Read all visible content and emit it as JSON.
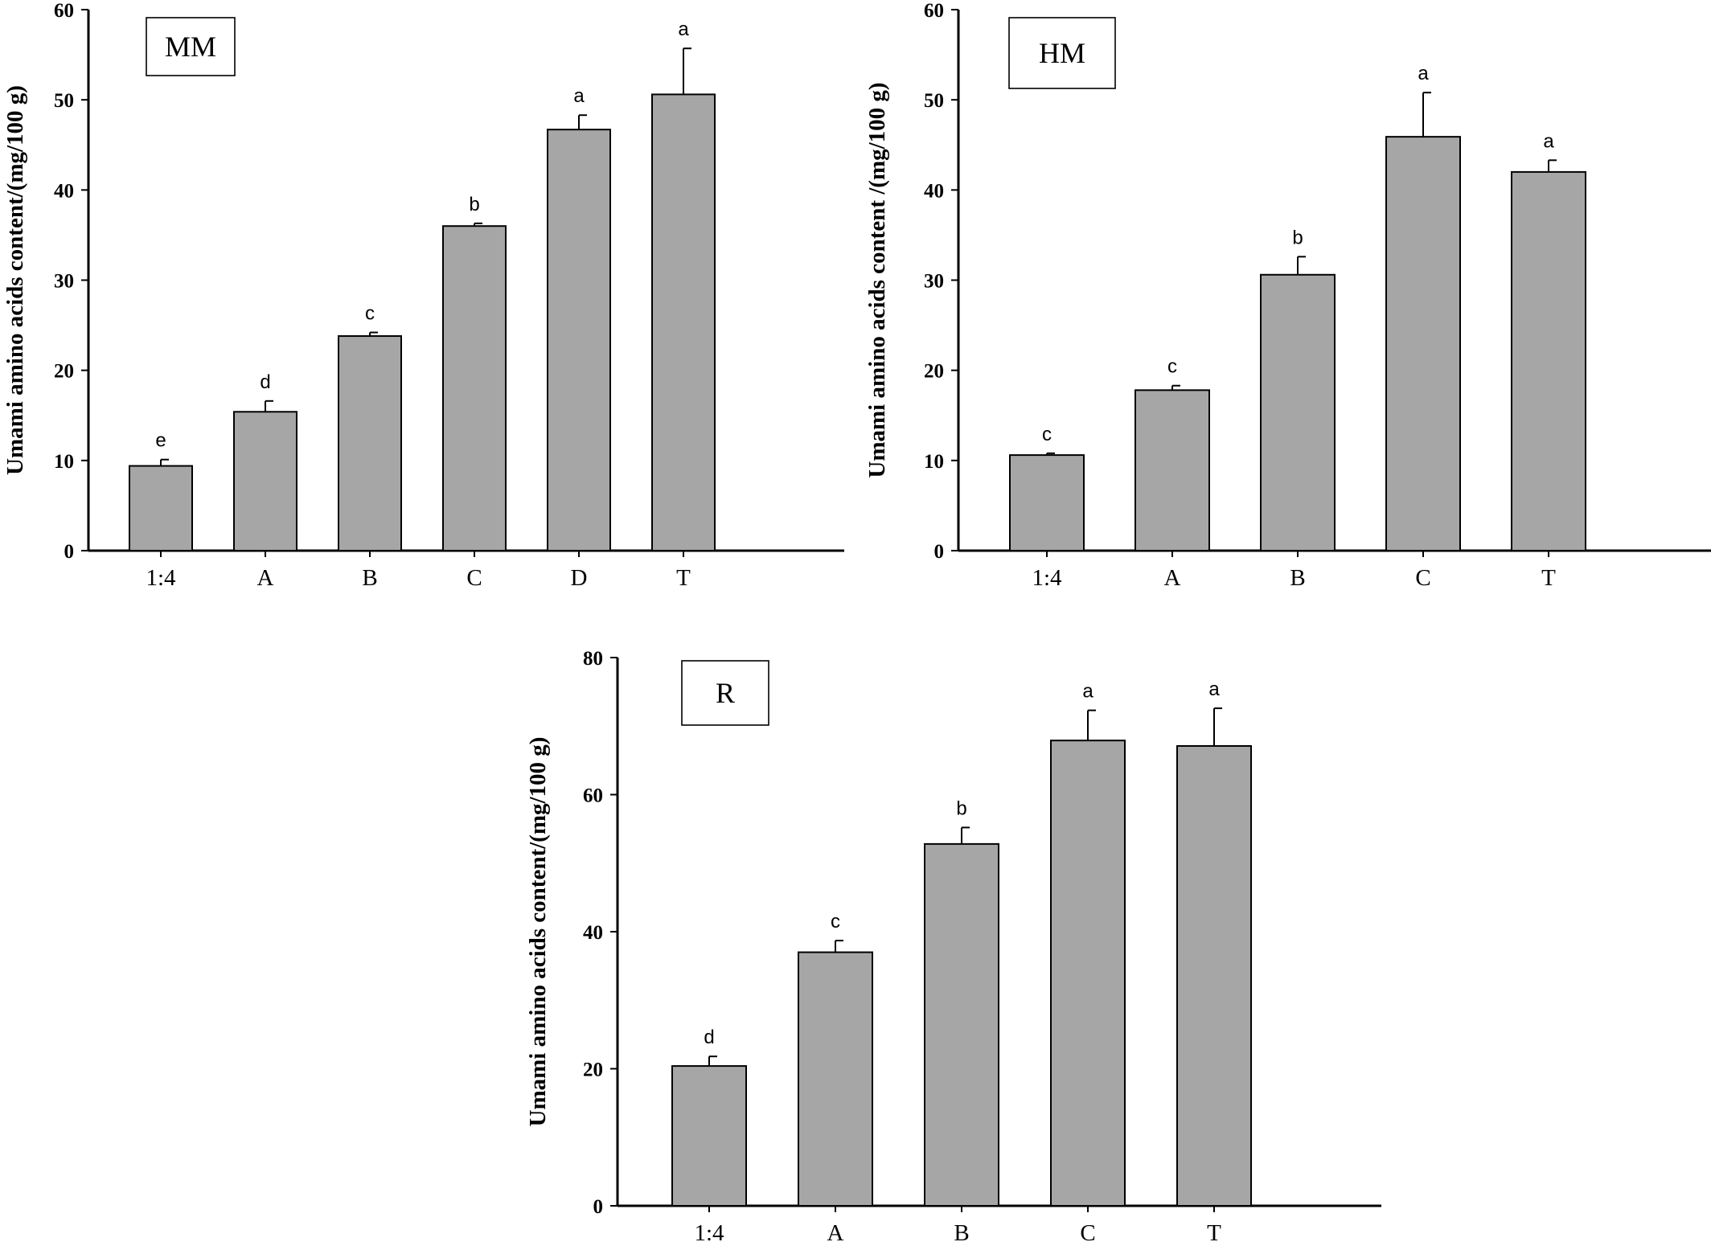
{
  "chart_data": [
    {
      "type": "bar",
      "panel_label": "MM",
      "ylabel": "Umami amino  acids content/(mg/100 g)",
      "xlabel": "",
      "ylim": [
        0,
        60
      ],
      "yticks": [
        "0",
        "10",
        "20",
        "30",
        "40",
        "50",
        "60"
      ],
      "categories": [
        "1:4",
        "A",
        "B",
        "C",
        "D",
        "T"
      ],
      "values": [
        9.4,
        15.4,
        23.8,
        36.0,
        46.7,
        50.6
      ],
      "errors": [
        0.7,
        1.2,
        0.4,
        0.3,
        1.6,
        5.1
      ],
      "significance": [
        "e",
        "d",
        "c",
        "b",
        "a",
        "a"
      ],
      "bar_color": "#a6a6a6"
    },
    {
      "type": "bar",
      "panel_label": "HM",
      "ylabel": "Umami amino acids content /(mg/100 g)",
      "xlabel": "",
      "ylim": [
        0,
        60
      ],
      "yticks": [
        "0",
        "10",
        "20",
        "30",
        "40",
        "50",
        "60"
      ],
      "categories": [
        "1:4",
        "A",
        "B",
        "C",
        "T"
      ],
      "values": [
        10.6,
        17.8,
        30.6,
        45.9,
        42.0
      ],
      "errors": [
        0.2,
        0.5,
        2.0,
        4.9,
        1.3
      ],
      "significance": [
        "c",
        "c",
        "b",
        "a",
        "a"
      ],
      "bar_color": "#a6a6a6"
    },
    {
      "type": "bar",
      "panel_label": "R",
      "ylabel": "Umami amino  acids content/(mg/100 g)",
      "xlabel": "",
      "ylim": [
        0,
        80
      ],
      "yticks": [
        "0",
        "20",
        "40",
        "60",
        "80"
      ],
      "categories": [
        "1:4",
        "A",
        "B",
        "C",
        "T"
      ],
      "values": [
        20.4,
        37.0,
        52.8,
        67.9,
        67.1
      ],
      "errors": [
        1.4,
        1.7,
        2.4,
        4.4,
        5.5
      ],
      "significance": [
        "d",
        "c",
        "b",
        "a",
        "a"
      ],
      "bar_color": "#a6a6a6"
    }
  ]
}
